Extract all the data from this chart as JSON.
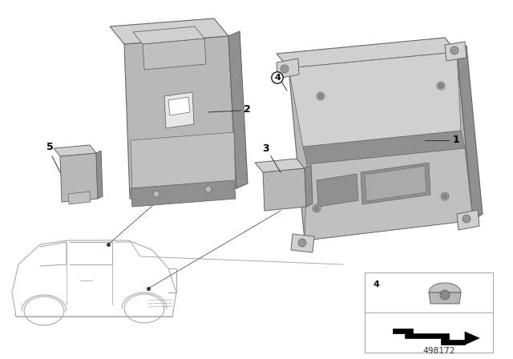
{
  "bg_color": "#ffffff",
  "part_gray": "#b8b8b8",
  "part_light": "#d0d0d0",
  "part_dark": "#909090",
  "part_mid": "#c0c0c0",
  "edge_color": "#666666",
  "line_color": "#555555",
  "label_color": "#000000",
  "diagram_number": "498172",
  "inset_border": "#aaaaaa"
}
